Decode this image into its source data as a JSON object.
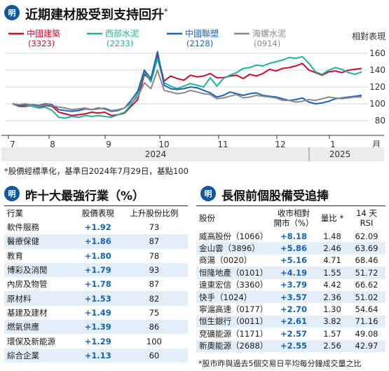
{
  "chart_title": "近期建材股受到支持回升",
  "chart_title_mark": "*",
  "chart_data": {
    "type": "line",
    "ylabel": "相對表現",
    "ylim": [
      70,
      165
    ],
    "yticks": [
      80,
      100,
      120,
      140,
      160
    ],
    "x_labels": [
      "7",
      "8",
      "9",
      "10",
      "11",
      "12",
      "1",
      "月"
    ],
    "years": [
      "2024",
      "2025"
    ],
    "series": [
      {
        "name": "中國建築",
        "code": "(3323)",
        "color": "#c8102e",
        "values": [
          100,
          97,
          97,
          98,
          96,
          98,
          97,
          90,
          88,
          86,
          87,
          88,
          90,
          89,
          90,
          86,
          87,
          89,
          97,
          105,
          135,
          128,
          158,
          127,
          133,
          130,
          128,
          134,
          132,
          133,
          136,
          131,
          131,
          133,
          134,
          130,
          135,
          133,
          136,
          141,
          139,
          142,
          143,
          145,
          148,
          140,
          137,
          134,
          138,
          139,
          137,
          140,
          141,
          142
        ]
      },
      {
        "name": "西部水泥",
        "code": "(2233)",
        "color": "#1fb29a",
        "values": [
          100,
          99,
          98,
          97,
          95,
          96,
          92,
          84,
          83,
          85,
          84,
          86,
          85,
          86,
          85,
          84,
          87,
          90,
          99,
          112,
          138,
          126,
          154,
          125,
          121,
          118,
          121,
          124,
          122,
          120,
          131,
          121,
          130,
          134,
          137,
          142,
          143,
          146,
          145,
          148,
          150,
          152,
          155,
          154,
          156,
          148,
          138,
          135,
          140,
          143,
          141,
          137,
          135,
          138
        ]
      },
      {
        "name": "中國聯塑",
        "code": "(2128)",
        "color": "#1e63b8",
        "values": [
          100,
          98,
          99,
          99,
          98,
          100,
          99,
          93,
          92,
          91,
          92,
          94,
          93,
          95,
          94,
          91,
          92,
          95,
          104,
          115,
          140,
          130,
          162,
          122,
          118,
          117,
          118,
          120,
          119,
          116,
          113,
          108,
          110,
          114,
          112,
          110,
          112,
          113,
          110,
          109,
          108,
          106,
          104,
          105,
          107,
          102,
          100,
          101,
          103,
          106,
          107,
          108,
          109,
          110
        ]
      },
      {
        "name": "海螺水泥",
        "code": "(0914)",
        "color": "#8a8a8a",
        "values": [
          100,
          99,
          100,
          98,
          97,
          99,
          98,
          96,
          95,
          93,
          94,
          95,
          93,
          94,
          95,
          92,
          93,
          95,
          101,
          108,
          125,
          118,
          140,
          116,
          114,
          112,
          113,
          116,
          114,
          112,
          111,
          106,
          107,
          109,
          111,
          107,
          108,
          110,
          109,
          108,
          107,
          104,
          104,
          102,
          103,
          105,
          104,
          106,
          108,
          107,
          106,
          107,
          108,
          108
        ]
      }
    ]
  },
  "chart_note": "*股價經標準化，基準日2024年7月29日，基點100",
  "left_table": {
    "title": "昨十大最強行業（%）",
    "headers": [
      "行業",
      "股價表現",
      "上升股份比例"
    ],
    "rows": [
      [
        "軟件服務",
        "+1.92",
        "73"
      ],
      [
        "醫療保健",
        "+1.86",
        "87"
      ],
      [
        "教育",
        "+1.80",
        "78"
      ],
      [
        "博彩及消閒",
        "+1.79",
        "93"
      ],
      [
        "內房及物管",
        "+1.78",
        "87"
      ],
      [
        "原材料",
        "+1.53",
        "82"
      ],
      [
        "基建及建材",
        "+1.49",
        "75"
      ],
      [
        "燃氣供應",
        "+1.39",
        "86"
      ],
      [
        "環保及新能源",
        "+1.29",
        "100"
      ],
      [
        "綜合企業",
        "+1.13",
        "60"
      ]
    ]
  },
  "right_table": {
    "title": "長假前個股備受追捧",
    "headers": [
      "股份",
      "收市相對\n開市（%）",
      "量比 *",
      "14 天\nRSI"
    ],
    "rows": [
      [
        "威高股份（1066）",
        "+8.18",
        "1.48",
        "62.09"
      ],
      [
        "金山雲（3896）",
        "+5.86",
        "2.46",
        "63.69"
      ],
      [
        "商湯（0020）",
        "+5.16",
        "4.71",
        "68.46"
      ],
      [
        "恒隆地產（0101）",
        "+4.19",
        "1.55",
        "51.72"
      ],
      [
        "遠東宏信（3360）",
        "+3.79",
        "4.42",
        "66.62"
      ],
      [
        "快手（1024）",
        "+3.57",
        "2.36",
        "51.02"
      ],
      [
        "寧滬高速（0177）",
        "+2.70",
        "1.30",
        "54.64"
      ],
      [
        "恒生銀行（0011）",
        "+2.61",
        "3.82",
        "71.16"
      ],
      [
        "兗礦能源（1171）",
        "+2.57",
        "1.57",
        "49.08"
      ],
      [
        "新奧能源（2688）",
        "+2.55",
        "2.56",
        "42.97"
      ]
    ],
    "note": "*股市昨與過去5個交易日平均每分鐘成交量之比"
  }
}
